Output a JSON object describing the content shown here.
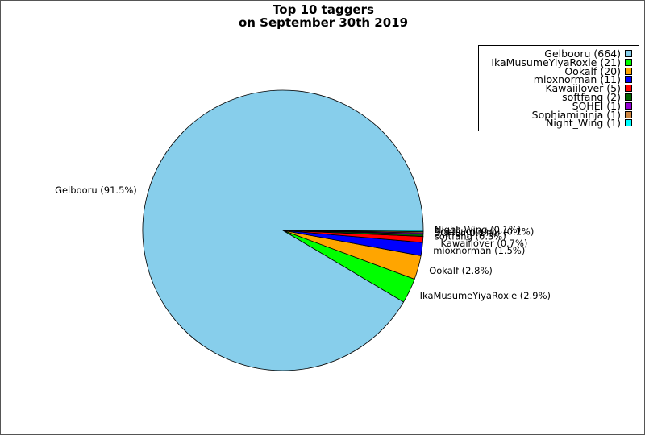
{
  "chart_data": {
    "type": "pie",
    "title_line1": "Top 10 taggers",
    "title_line2": "on September 30th 2019",
    "slices": [
      {
        "name": "Gelbooru",
        "count_label": "Gelbooru (664)",
        "value": 664,
        "pct_label": "Gelbooru (91.5%)",
        "color": "#87ceeb"
      },
      {
        "name": "IkaMusumeYiyaRoxie",
        "count_label": "IkaMusumeYiyaRoxie (21)",
        "value": 21,
        "pct_label": "IkaMusumeYiyaRoxie (2.9%)",
        "color": "#00ff00"
      },
      {
        "name": "Ookalf",
        "count_label": "Ookalf (20)",
        "value": 20,
        "pct_label": "Ookalf (2.8%)",
        "color": "#ffa500"
      },
      {
        "name": "mioxnorman",
        "count_label": "mioxnorman (11)",
        "value": 11,
        "pct_label": "mioxnorman (1.5%)",
        "color": "#0000ff"
      },
      {
        "name": "Kawaiilover",
        "count_label": "Kawaiilover (5)",
        "value": 5,
        "pct_label": "Kawaiilover (0.7%)",
        "color": "#ff0000"
      },
      {
        "name": "softfang",
        "count_label": "softfang (2)",
        "value": 2,
        "pct_label": "softfang (0.3%)",
        "color": "#006400"
      },
      {
        "name": "SOHEI",
        "count_label": "SOHEI (1)",
        "value": 1,
        "pct_label": "SOHEI (0.1%)",
        "color": "#9400d3"
      },
      {
        "name": "Sophiamininja",
        "count_label": "Sophiamininja (1)",
        "value": 1,
        "pct_label": "Sophiamininja (0.1%)",
        "color": "#cd853f"
      },
      {
        "name": "Night_Wing",
        "count_label": "Night_Wing (1)",
        "value": 1,
        "pct_label": "Night_Wing (0.1%)",
        "color": "#00ffff"
      }
    ],
    "legend_placement": "top-right"
  }
}
